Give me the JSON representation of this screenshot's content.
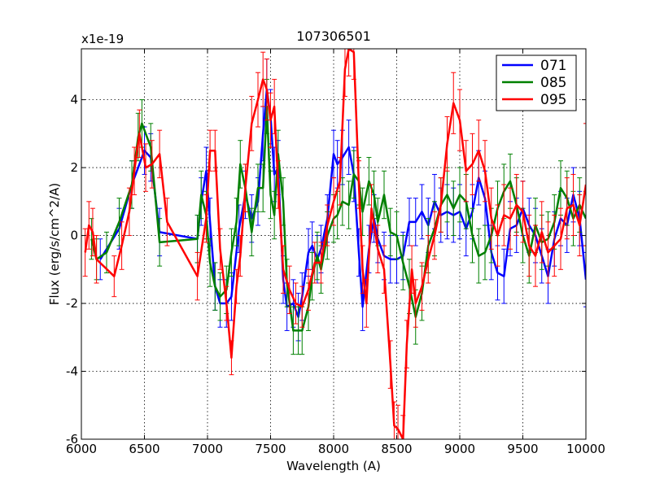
{
  "chart_data": {
    "type": "line",
    "title": "107306501",
    "xlabel": "Wavelength (A)",
    "ylabel": "Flux (erg/s/cm^2/A)",
    "y_offset_label": "x1e-19",
    "xlim": [
      6000,
      10000
    ],
    "ylim": [
      -6,
      5.5
    ],
    "x_ticks": [
      6000,
      6500,
      7000,
      7500,
      8000,
      8500,
      9000,
      9500,
      10000
    ],
    "y_ticks": [
      -6,
      -4,
      -2,
      0,
      2,
      4
    ],
    "x_tick_labels": [
      "6000",
      "6500",
      "7000",
      "7500",
      "8000",
      "8500",
      "9000",
      "9500",
      "10000"
    ],
    "y_tick_labels": [
      "-6",
      "-4",
      "-2",
      "0",
      "2",
      "4"
    ],
    "grid": true,
    "legend_position": "top-right",
    "series": [
      {
        "name": "071",
        "color": "#0000ff",
        "x": [
          6150,
          6300,
          6400,
          6500,
          6550,
          6620,
          6920,
          6950,
          6990,
          7020,
          7060,
          7100,
          7150,
          7190,
          7250,
          7300,
          7350,
          7400,
          7440,
          7470,
          7500,
          7530,
          7560,
          7600,
          7630,
          7680,
          7720,
          7750,
          7800,
          7830,
          7870,
          7900,
          7950,
          8000,
          8030,
          8070,
          8120,
          8160,
          8200,
          8230,
          8280,
          8320,
          8350,
          8400,
          8450,
          8500,
          8550,
          8600,
          8650,
          8700,
          8750,
          8800,
          8850,
          8900,
          8950,
          9000,
          9050,
          9100,
          9150,
          9200,
          9250,
          9300,
          9350,
          9400,
          9450,
          9500,
          9550,
          9600,
          9650,
          9700,
          9750,
          9800,
          9850,
          9900,
          9950,
          10000
        ],
        "y": [
          -0.7,
          0.2,
          1.5,
          2.5,
          2.3,
          0.1,
          -0.1,
          1.0,
          1.9,
          0.4,
          -1.5,
          -2.0,
          -2.0,
          -1.8,
          0.2,
          1.2,
          0.5,
          1.0,
          3.0,
          4.3,
          3.5,
          1.8,
          2.0,
          -1.3,
          -2.1,
          -2.0,
          -2.4,
          -1.8,
          -0.5,
          -0.3,
          -0.7,
          -0.4,
          0.5,
          2.4,
          2.1,
          2.3,
          2.6,
          1.8,
          -0.5,
          -2.1,
          -0.4,
          0.5,
          -0.1,
          -0.6,
          -0.7,
          -0.7,
          -0.6,
          0.4,
          0.4,
          0.7,
          0.3,
          1.0,
          0.6,
          0.7,
          0.6,
          0.7,
          0.2,
          0.7,
          1.7,
          1.1,
          -0.5,
          -1.1,
          -1.2,
          0.2,
          0.3,
          0.8,
          0.3,
          0.0,
          -0.6,
          -1.2,
          -0.1,
          0.5,
          0.3,
          1.2,
          0.5,
          -1.3
        ],
        "errors": [
          0.6,
          0.6,
          0.7,
          0.7,
          0.7,
          0.7,
          0.7,
          0.7,
          0.7,
          0.7,
          0.7,
          0.7,
          0.7,
          0.7,
          0.7,
          0.7,
          0.7,
          0.7,
          0.8,
          0.9,
          0.8,
          0.8,
          0.8,
          0.7,
          0.7,
          0.7,
          0.7,
          0.7,
          0.7,
          0.7,
          0.7,
          0.7,
          0.7,
          0.7,
          0.7,
          0.8,
          0.8,
          0.8,
          0.7,
          0.7,
          0.7,
          0.7,
          0.7,
          0.7,
          0.7,
          0.7,
          0.7,
          0.7,
          0.7,
          0.8,
          0.8,
          0.8,
          0.8,
          0.8,
          0.8,
          0.8,
          0.8,
          0.8,
          0.8,
          0.8,
          0.8,
          0.8,
          0.8,
          0.8,
          0.8,
          0.8,
          0.8,
          0.8,
          0.8,
          0.8,
          0.8,
          0.8,
          0.8,
          0.8,
          0.8,
          0.8
        ]
      },
      {
        "name": "085",
        "color": "#008000",
        "x": [
          6080,
          6120,
          6200,
          6300,
          6400,
          6450,
          6480,
          6550,
          6620,
          6920,
          6950,
          6990,
          7020,
          7060,
          7100,
          7150,
          7190,
          7230,
          7260,
          7300,
          7350,
          7400,
          7440,
          7470,
          7500,
          7530,
          7560,
          7600,
          7630,
          7680,
          7720,
          7750,
          7800,
          7830,
          7870,
          7900,
          7950,
          8000,
          8030,
          8070,
          8120,
          8160,
          8200,
          8230,
          8280,
          8320,
          8350,
          8400,
          8450,
          8500,
          8550,
          8600,
          8650,
          8700,
          8750,
          8800,
          8850,
          8900,
          8950,
          9000,
          9050,
          9100,
          9150,
          9200,
          9250,
          9300,
          9350,
          9400,
          9450,
          9500,
          9550,
          9600,
          9650,
          9700,
          9750,
          9800,
          9850,
          9900,
          9950,
          10000
        ],
        "y": [
          -0.1,
          -0.7,
          -0.5,
          0.4,
          1.5,
          2.9,
          3.3,
          2.6,
          -0.2,
          -0.1,
          1.2,
          0.6,
          -0.8,
          -1.5,
          -1.8,
          -1.6,
          -0.5,
          0.4,
          2.1,
          1.4,
          0.1,
          1.4,
          1.4,
          3.8,
          1.2,
          0.6,
          2.4,
          1.0,
          -1.4,
          -2.8,
          -2.8,
          -2.8,
          -2.1,
          -1.2,
          -0.6,
          -1.0,
          0.0,
          0.5,
          0.6,
          1.0,
          0.9,
          1.8,
          1.6,
          0.7,
          1.6,
          1.2,
          0.4,
          1.2,
          0.1,
          0.0,
          -0.8,
          -1.5,
          -2.4,
          -1.7,
          -0.3,
          0.2,
          0.9,
          1.2,
          0.8,
          1.2,
          1.0,
          0.0,
          -0.6,
          -0.5,
          0.0,
          0.8,
          1.3,
          1.6,
          0.9,
          0.0,
          -0.6,
          0.3,
          -0.2,
          -0.1,
          0.4,
          1.4,
          1.1,
          0.5,
          0.9,
          0.5
        ],
        "errors": [
          0.6,
          0.6,
          0.6,
          0.7,
          0.7,
          0.7,
          0.7,
          0.7,
          0.7,
          0.7,
          0.7,
          0.7,
          0.7,
          0.7,
          0.7,
          0.7,
          0.7,
          0.7,
          0.7,
          0.7,
          0.7,
          0.7,
          0.7,
          0.8,
          0.7,
          0.7,
          0.7,
          0.7,
          0.7,
          0.7,
          0.7,
          0.7,
          0.7,
          0.7,
          0.7,
          0.7,
          0.7,
          0.7,
          0.7,
          0.7,
          0.7,
          0.7,
          0.7,
          0.7,
          0.7,
          0.7,
          0.7,
          0.7,
          0.7,
          0.7,
          0.8,
          0.8,
          0.8,
          0.8,
          0.8,
          0.8,
          0.8,
          0.8,
          0.8,
          0.8,
          0.8,
          0.8,
          0.8,
          0.8,
          0.8,
          0.8,
          0.8,
          0.8,
          0.8,
          0.8,
          0.8,
          0.8,
          0.8,
          0.8,
          0.8,
          0.8,
          0.8,
          0.8,
          0.8,
          0.8
        ]
      },
      {
        "name": "095",
        "color": "#ff0000",
        "x": [
          6030,
          6060,
          6090,
          6120,
          6260,
          6320,
          6380,
          6420,
          6460,
          6510,
          6560,
          6620,
          6680,
          6920,
          6990,
          7020,
          7060,
          7100,
          7150,
          7190,
          7230,
          7260,
          7300,
          7350,
          7400,
          7440,
          7470,
          7500,
          7530,
          7560,
          7600,
          7650,
          7700,
          7750,
          7800,
          7850,
          7900,
          7950,
          8000,
          8050,
          8090,
          8120,
          8160,
          8200,
          8230,
          8260,
          8300,
          8350,
          8400,
          8450,
          8480,
          8510,
          8550,
          8580,
          8620,
          8650,
          8700,
          8750,
          8800,
          8850,
          8900,
          8950,
          9000,
          9050,
          9100,
          9150,
          9200,
          9250,
          9300,
          9350,
          9400,
          9450,
          9500,
          9550,
          9600,
          9650,
          9700,
          9750,
          9800,
          9850,
          9900,
          9950,
          10000
        ],
        "y": [
          -0.5,
          0.3,
          0.1,
          -0.7,
          -1.2,
          -0.3,
          0.7,
          1.9,
          3.0,
          2.0,
          2.1,
          2.4,
          0.4,
          -1.2,
          0.5,
          2.5,
          2.5,
          -0.4,
          -2.0,
          -3.6,
          -1.5,
          -0.6,
          1.4,
          3.3,
          4.0,
          4.6,
          4.3,
          3.4,
          3.8,
          1.5,
          -1.0,
          -1.6,
          -2.0,
          -2.1,
          -1.6,
          -0.8,
          -0.8,
          0.3,
          1.0,
          1.6,
          4.9,
          5.5,
          5.4,
          1.5,
          -1.0,
          -2.0,
          0.8,
          -0.4,
          -1.0,
          -3.8,
          -5.6,
          -5.7,
          -6.0,
          -3.2,
          -1.0,
          -2.0,
          -1.5,
          -0.7,
          0.0,
          0.9,
          2.7,
          3.9,
          3.4,
          1.9,
          2.1,
          2.5,
          1.9,
          0.5,
          0.0,
          0.6,
          0.5,
          0.9,
          0.7,
          -0.3,
          -0.6,
          0.1,
          -0.5,
          -0.3,
          -0.1,
          0.8,
          0.9,
          0.3,
          1.5
        ],
        "errors": [
          0.7,
          0.7,
          0.7,
          0.7,
          0.6,
          0.7,
          0.7,
          0.7,
          0.7,
          0.7,
          0.7,
          0.7,
          0.7,
          0.7,
          0.7,
          0.6,
          0.6,
          0.6,
          0.5,
          0.5,
          0.5,
          0.6,
          0.7,
          0.8,
          0.8,
          0.8,
          0.9,
          0.8,
          0.8,
          0.7,
          0.7,
          0.7,
          0.6,
          0.6,
          0.6,
          0.6,
          0.6,
          0.6,
          0.7,
          0.7,
          0.8,
          0.8,
          0.8,
          0.7,
          0.7,
          0.7,
          0.7,
          0.7,
          0.7,
          0.7,
          0.7,
          0.7,
          0.7,
          0.7,
          0.7,
          0.7,
          0.7,
          0.7,
          0.7,
          0.8,
          0.8,
          0.9,
          0.9,
          0.9,
          0.9,
          0.9,
          0.9,
          0.9,
          0.9,
          0.9,
          0.9,
          0.9,
          0.9,
          0.9,
          0.9,
          0.9,
          0.9,
          0.9,
          0.9,
          0.9,
          0.9,
          0.9,
          1.8
        ]
      }
    ]
  }
}
